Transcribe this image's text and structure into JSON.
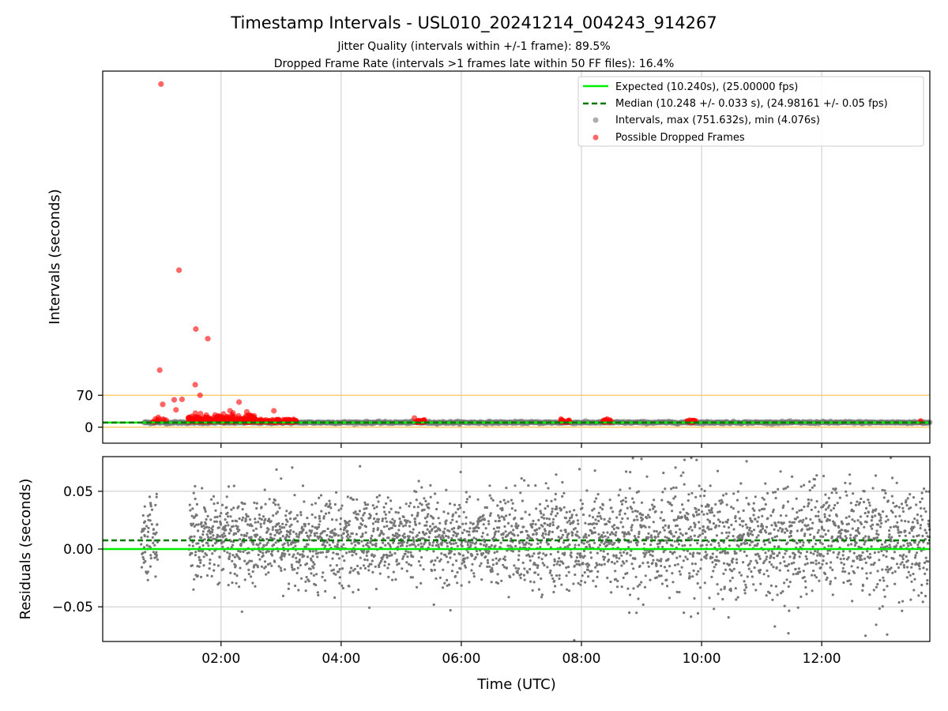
{
  "figure": {
    "title": "Timestamp Intervals - USL010_20241214_004243_914267",
    "subtitle_1": "Jitter Quality (intervals within +/-1 frame): 89.5%",
    "subtitle_2": "Dropped Frame Rate (intervals >1 frames late within 50 FF files): 16.4%"
  },
  "colors": {
    "expected": "#00ee00",
    "median": "#007700",
    "intervals": "#777777",
    "dropped": "#ff0000",
    "band": "#ffc04d",
    "grid": "#c8c8c8"
  },
  "chart_data": [
    {
      "type": "scatter",
      "panel": "top",
      "xlabel": "",
      "ylabel": "Intervals (seconds)",
      "x_unit": "hours UTC",
      "xlim": [
        0.03,
        13.8
      ],
      "ylim": [
        -35,
        780
      ],
      "yticks": [
        {
          "value": 0,
          "label": "0"
        },
        {
          "value": 70,
          "label": "70"
        }
      ],
      "xticks": [
        2,
        4,
        6,
        8,
        10,
        12
      ],
      "grid": "x only",
      "legend_placement": "top-right",
      "legend": {
        "expected": "Expected (10.240s), (25.00000 fps)",
        "median": "Median (10.248 +/- 0.033 s), (24.98161 +/- 0.05 fps)",
        "intervals": "Intervals, max (751.632s), min (4.076s)",
        "dropped": "Possible Dropped Frames"
      },
      "expected_value": 10.24,
      "median_value": 10.248,
      "reference_lines": [
        0,
        70
      ],
      "intervals_span": {
        "x_start": 0.72,
        "x_end": 13.8,
        "typical_value": 10.24
      },
      "dropped_frames": [
        {
          "x": 1.0,
          "y": 751.6
        },
        {
          "x": 1.3,
          "y": 344
        },
        {
          "x": 1.58,
          "y": 215
        },
        {
          "x": 1.78,
          "y": 194
        },
        {
          "x": 0.98,
          "y": 125
        },
        {
          "x": 1.57,
          "y": 93
        },
        {
          "x": 1.65,
          "y": 70
        },
        {
          "x": 1.03,
          "y": 50
        },
        {
          "x": 1.22,
          "y": 60
        },
        {
          "x": 1.35,
          "y": 61
        },
        {
          "x": 2.3,
          "y": 55
        },
        {
          "x": 1.25,
          "y": 38
        },
        {
          "x": 2.15,
          "y": 36
        },
        {
          "x": 2.2,
          "y": 31
        },
        {
          "x": 2.88,
          "y": 36
        },
        {
          "x": 5.22,
          "y": 20
        }
      ]
    },
    {
      "type": "scatter",
      "panel": "bottom",
      "xlabel": "Time (UTC)",
      "ylabel": "Residuals (seconds)",
      "x_unit": "hours UTC",
      "xlim": [
        0.03,
        13.8
      ],
      "ylim": [
        -0.08,
        0.08
      ],
      "yticks": [
        {
          "value": 0.05,
          "label": "0.05"
        },
        {
          "value": 0.0,
          "label": "0.00"
        },
        {
          "value": -0.05,
          "label": "−0.05"
        }
      ],
      "xticks": [
        {
          "value": 2,
          "label": "02:00"
        },
        {
          "value": 4,
          "label": "04:00"
        },
        {
          "value": 6,
          "label": "06:00"
        },
        {
          "value": 8,
          "label": "08:00"
        },
        {
          "value": 10,
          "label": "10:00"
        },
        {
          "value": 12,
          "label": "12:00"
        }
      ],
      "grid": "both",
      "expected_residual": 0.0,
      "median_residual": 0.0075,
      "residual_center": 0.008,
      "residual_spread": 0.022,
      "residual_spread_late": 0.028,
      "first_segment": [
        0.67,
        0.95
      ],
      "second_segment": [
        1.47,
        13.8
      ],
      "outliers": [
        {
          "x": 9.83,
          "y": 0.079
        },
        {
          "x": 13.15,
          "y": 0.079
        },
        {
          "x": 9.0,
          "y": 0.078
        },
        {
          "x": 10.75,
          "y": 0.076
        },
        {
          "x": 7.88,
          "y": -0.079
        },
        {
          "x": 12.73,
          "y": -0.075
        },
        {
          "x": 13.09,
          "y": -0.074
        },
        {
          "x": 11.22,
          "y": -0.067
        },
        {
          "x": 3.0,
          "y": 0.061
        },
        {
          "x": 5.82,
          "y": -0.053
        }
      ]
    }
  ]
}
